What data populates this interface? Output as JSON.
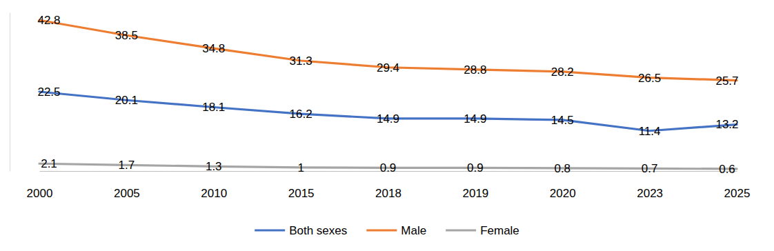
{
  "chart_data": {
    "type": "line",
    "categories": [
      "2000",
      "2005",
      "2010",
      "2015",
      "2018",
      "2019",
      "2020",
      "2023",
      "2025"
    ],
    "series": [
      {
        "name": "Both sexes",
        "color": "#4472c4",
        "values": [
          22.5,
          20.1,
          18.1,
          16.2,
          14.9,
          14.9,
          14.5,
          11.4,
          13.2
        ]
      },
      {
        "name": "Male",
        "color": "#ed7d31",
        "values": [
          42.8,
          38.5,
          34.8,
          31.3,
          29.4,
          28.8,
          28.2,
          26.5,
          25.7
        ]
      },
      {
        "name": "Female",
        "color": "#a5a5a5",
        "values": [
          2.1,
          1.7,
          1.3,
          1,
          0.9,
          0.9,
          0.8,
          0.7,
          0.6
        ]
      }
    ],
    "ylim": [
      0,
      45
    ],
    "yticks": [],
    "tick_labels": "x",
    "data_labels": true,
    "legend": "bottom",
    "grid": false
  }
}
